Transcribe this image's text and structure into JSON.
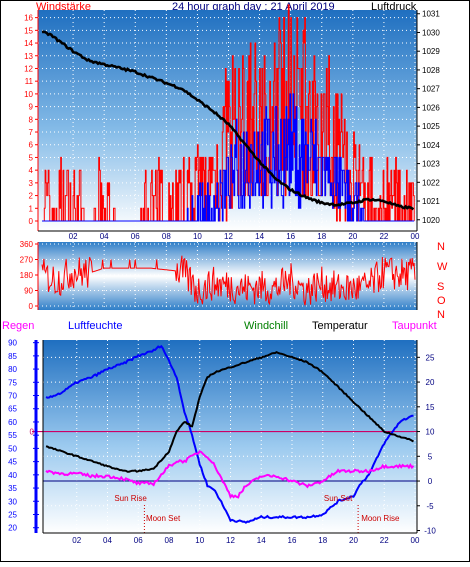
{
  "top_headers": {
    "left": "Windstärke",
    "center": "24 hour graph day : 21 April 2019",
    "right": "Luftdruck"
  },
  "bottom_headers": {
    "regen": "Regen",
    "luftfeuchte": "Luftfeuchte",
    "windchill": "Windchill",
    "temperatur": "Temperatur",
    "taupunkt": "Taupunkt"
  },
  "colors": {
    "wind": "#ff0000",
    "wind_avg": "#0000ff",
    "pressure": "#000000",
    "humidity": "#0000ff",
    "temperature": "#000000",
    "dewpoint": "#ff00ff",
    "windchill": "#008000",
    "zero_line": "#cc0066",
    "navy": "#000080"
  },
  "chart_data": [
    {
      "type": "line",
      "name": "wind-pressure",
      "x_tick_labels": [
        "02",
        "04",
        "06",
        "08",
        "10",
        "12",
        "14",
        "16",
        "18",
        "20",
        "22",
        "00"
      ],
      "y_left_ticks": [
        "0",
        "1",
        "2",
        "3",
        "4",
        "5",
        "6",
        "7",
        "8",
        "9",
        "10",
        "11",
        "12",
        "13",
        "14",
        "15",
        "16"
      ],
      "y_right_ticks": [
        "1020",
        "1021",
        "1022",
        "1023",
        "1024",
        "1025",
        "1026",
        "1027",
        "1028",
        "1029",
        "1030",
        "1031"
      ],
      "ylim_left": [
        0,
        16.6
      ],
      "ylim_right": [
        1019.4,
        1031.2
      ],
      "series": [
        {
          "axis": "right",
          "x": [
            0,
            0.5,
            1,
            1.5,
            2,
            3,
            4,
            5,
            6,
            7,
            8,
            9,
            10,
            11,
            12,
            13,
            14,
            15,
            16,
            17,
            18,
            19,
            20,
            21,
            22,
            23,
            24
          ],
          "y": [
            1030.0,
            1029.9,
            1029.6,
            1029.3,
            1029.0,
            1028.5,
            1028.3,
            1028.1,
            1027.9,
            1027.6,
            1027.3,
            1027.0,
            1026.4,
            1025.8,
            1025.1,
            1024.1,
            1023.1,
            1022.2,
            1021.6,
            1021.2,
            1020.9,
            1020.8,
            1020.9,
            1021.1,
            1021.0,
            1020.7,
            1020.6
          ]
        },
        {
          "axis": "left",
          "kind": "gust_step",
          "x": [
            0,
            1,
            2,
            3,
            4,
            5,
            6,
            7,
            8,
            9,
            10,
            11,
            12,
            13,
            14,
            15,
            16,
            17,
            18,
            19,
            20,
            21,
            22,
            23,
            24
          ],
          "y": [
            1,
            1,
            1,
            0,
            1,
            0,
            0,
            1,
            1,
            1,
            2,
            3,
            7,
            8,
            8,
            8,
            11,
            9,
            8,
            6,
            3,
            1,
            1,
            1,
            1
          ]
        },
        {
          "axis": "left",
          "kind": "avg_step",
          "x": [
            0,
            1,
            2,
            3,
            4,
            5,
            6,
            7,
            8,
            9,
            10,
            11,
            12,
            13,
            14,
            15,
            16,
            17,
            18,
            19,
            20,
            21,
            22,
            23,
            24
          ],
          "y": [
            0,
            0,
            0,
            0,
            0,
            0,
            0,
            0,
            0,
            0,
            1,
            1,
            3,
            5,
            5,
            5,
            6,
            5,
            4,
            3,
            1,
            0,
            0,
            0,
            0
          ]
        }
      ]
    },
    {
      "type": "line",
      "name": "wind-direction",
      "y_left_ticks": [
        "0",
        "90",
        "180",
        "270",
        "360"
      ],
      "y_right_labels": [
        "N",
        "W",
        "S",
        "O",
        "N"
      ],
      "ylim": [
        0,
        360
      ],
      "series": [
        {
          "x": [
            0,
            1,
            2,
            3,
            4,
            5,
            6,
            7,
            8,
            9,
            10,
            11,
            12,
            13,
            14,
            15,
            16,
            17,
            18,
            19,
            20,
            21,
            22,
            23,
            24
          ],
          "y": [
            180,
            150,
            200,
            190,
            220,
            220,
            220,
            220,
            210,
            200,
            90,
            130,
            120,
            100,
            110,
            100,
            150,
            90,
            130,
            100,
            100,
            110,
            200,
            180,
            190
          ]
        }
      ]
    },
    {
      "type": "line",
      "name": "humidity-temperature",
      "y_left_ticks": [
        "20",
        "25",
        "30",
        "35",
        "40",
        "45",
        "50",
        "55",
        "60",
        "65",
        "70",
        "75",
        "80",
        "85",
        "90"
      ],
      "y_right_ticks": [
        "-10",
        "-5",
        "0",
        "5",
        "10",
        "15",
        "20",
        "25"
      ],
      "ylim_left": [
        18,
        91
      ],
      "ylim_right": [
        -10.5,
        28.5
      ],
      "zero_label": "0",
      "annotations": [
        "Sun Rise",
        "Moon Set",
        "Sun Set",
        "Moon Rise"
      ],
      "series": [
        {
          "name": "Luftfeuchte",
          "x": [
            0,
            0.5,
            1,
            2,
            3,
            4,
            5,
            6,
            7,
            7.5,
            8,
            8.5,
            9,
            9.5,
            10,
            10.5,
            11,
            12,
            13,
            14,
            15,
            16,
            17,
            18,
            19,
            20,
            20.5,
            21,
            22,
            23,
            24
          ],
          "y": [
            69,
            70,
            71,
            75,
            77,
            80,
            82,
            85,
            87,
            89,
            83,
            77,
            64,
            55,
            44,
            36,
            34,
            23,
            22,
            24,
            24,
            24,
            24,
            25,
            30,
            32,
            37,
            40,
            52,
            60,
            63
          ]
        },
        {
          "name": "Temperatur",
          "x": [
            0,
            1,
            2,
            3,
            4,
            5,
            6,
            7,
            8,
            8.5,
            9,
            9.5,
            10,
            10.5,
            11,
            12,
            13,
            14,
            15,
            16,
            17,
            18,
            19,
            20,
            21,
            22,
            23,
            24
          ],
          "y": [
            7,
            6,
            5,
            4,
            3,
            2,
            2,
            2.5,
            6,
            10,
            12,
            11,
            17,
            21,
            22,
            23,
            24,
            25,
            26,
            25,
            24,
            22,
            19,
            16,
            13,
            10,
            9,
            8
          ]
        },
        {
          "name": "Taupunkt",
          "x": [
            0,
            1,
            2,
            3,
            4,
            5,
            6,
            7,
            8,
            8.5,
            9,
            10,
            10.5,
            11,
            12,
            12.5,
            13,
            14,
            15,
            16,
            17,
            18,
            19,
            20,
            21,
            22,
            23,
            24
          ],
          "y": [
            2,
            1.5,
            1.5,
            1,
            1,
            0.5,
            -0.5,
            -0.5,
            3,
            4,
            4,
            6,
            5,
            3,
            -3,
            -3,
            -1,
            1,
            1,
            0,
            -1,
            0,
            2,
            2,
            2,
            3,
            3,
            3
          ]
        }
      ]
    }
  ]
}
